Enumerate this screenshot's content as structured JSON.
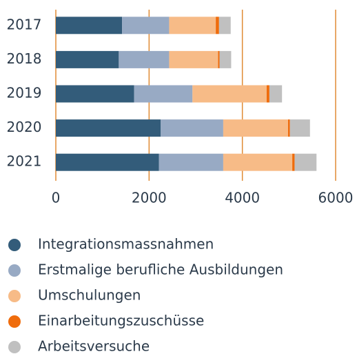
{
  "chart_data": {
    "type": "bar",
    "orientation": "horizontal",
    "stacked": true,
    "categories": [
      "2017",
      "2018",
      "2019",
      "2020",
      "2021"
    ],
    "series": [
      {
        "name": "Integrationsmassnahmen",
        "color": "#335c7a",
        "values": [
          1420,
          1350,
          1680,
          2250,
          2210
        ]
      },
      {
        "name": "Erstmalige berufliche Ausbildungen",
        "color": "#98aac4",
        "values": [
          1010,
          1080,
          1250,
          1340,
          1380
        ]
      },
      {
        "name": "Umschulungen",
        "color": "#f7bb87",
        "values": [
          1000,
          1050,
          1590,
          1390,
          1480
        ]
      },
      {
        "name": "Einarbeitungszuschüsse",
        "color": "#ef6c0c",
        "values": [
          70,
          30,
          60,
          40,
          50
        ]
      },
      {
        "name": "Arbeitsversuche",
        "color": "#c0c0c0",
        "values": [
          250,
          250,
          270,
          430,
          470
        ]
      }
    ],
    "xlim": [
      0,
      6000
    ],
    "xticks": [
      0,
      2000,
      4000,
      6000
    ],
    "grid": true,
    "grid_color": "#e08a33",
    "legend": "bottom"
  }
}
